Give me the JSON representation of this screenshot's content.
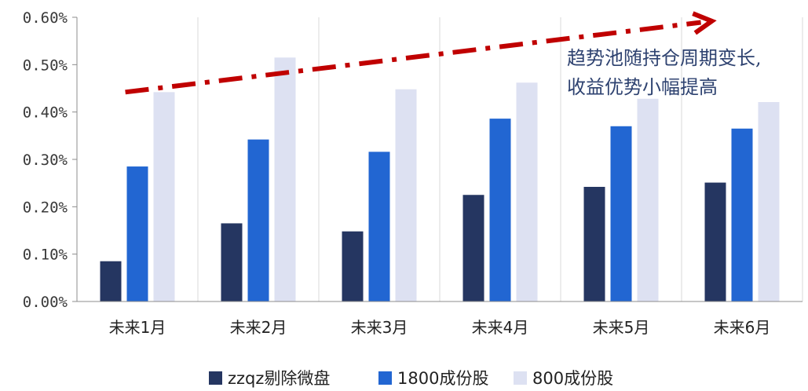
{
  "chart_data": {
    "type": "bar",
    "categories": [
      "未来1月",
      "未来2月",
      "未来3月",
      "未来4月",
      "未来5月",
      "未来6月"
    ],
    "series": [
      {
        "name": "zzqz剔除微盘",
        "values": [
          0.085,
          0.165,
          0.148,
          0.225,
          0.242,
          0.251
        ],
        "color": "#253661"
      },
      {
        "name": "1800成份股",
        "values": [
          0.285,
          0.342,
          0.316,
          0.386,
          0.37,
          0.365
        ],
        "color": "#2266d2"
      },
      {
        "name": "800成份股",
        "values": [
          0.442,
          0.515,
          0.448,
          0.462,
          0.428,
          0.421
        ],
        "color": "#dde1f2"
      }
    ],
    "ylim": [
      0,
      0.6
    ],
    "yticks": [
      0,
      0.1,
      0.2,
      0.3,
      0.4,
      0.5,
      0.6
    ],
    "ytick_labels": [
      "0.00%",
      "0.10%",
      "0.20%",
      "0.30%",
      "0.40%",
      "0.50%",
      "0.60%"
    ],
    "grid": "vertical-category-separators",
    "legend_position": "bottom",
    "annotation": {
      "lines": [
        "趋势池随持仓周期变长,",
        "收益优势小幅提高"
      ],
      "color": "#2e4270"
    },
    "trend_arrow": {
      "from": [
        0.4,
        0.442
      ],
      "to": [
        5.25,
        0.592
      ],
      "color": "#c00000"
    }
  }
}
